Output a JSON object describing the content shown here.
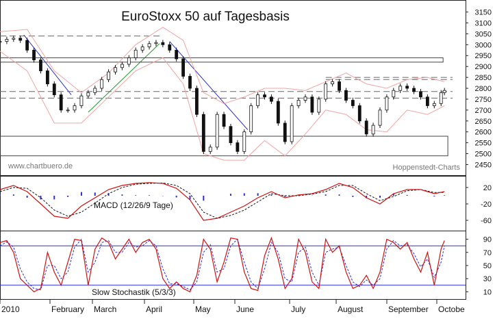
{
  "chart_data": [
    {
      "type": "line",
      "panel": "price",
      "title": "EuroStoxx 50 auf Tagesbasis",
      "watermark_left": "www.chartbuero.de",
      "watermark_right": "Hoppenstedt-Charts",
      "y_ticks": [
        3150,
        3100,
        3050,
        3000,
        2950,
        2900,
        2850,
        2800,
        2750,
        2700,
        2650,
        2600,
        2550,
        2500,
        2450
      ],
      "ylim": [
        2420,
        3180
      ],
      "x_range": [
        0,
        673
      ],
      "series": [
        {
          "x": [
            0,
            10,
            20,
            30,
            40,
            50,
            60,
            70,
            80,
            90,
            100,
            110,
            120,
            130,
            140,
            150,
            160,
            170,
            180,
            190,
            200,
            210,
            220,
            230,
            240,
            250,
            260,
            270,
            280,
            290,
            300,
            310,
            320,
            330,
            340,
            350,
            360,
            370,
            380,
            390,
            400,
            410,
            420,
            430,
            440,
            450,
            460,
            470,
            480,
            490,
            500,
            510,
            520,
            530,
            540,
            550,
            560,
            570,
            580,
            590,
            600,
            610,
            620,
            630,
            640,
            650,
            655
          ],
          "values": [
            3015,
            3025,
            3030,
            3020,
            2975,
            2930,
            2880,
            2820,
            2770,
            2700,
            2700,
            2720,
            2765,
            2780,
            2800,
            2840,
            2875,
            2895,
            2910,
            2940,
            2975,
            2990,
            3005,
            3010,
            3000,
            2975,
            2935,
            2855,
            2800,
            2680,
            2510,
            2530,
            2680,
            2625,
            2550,
            2510,
            2600,
            2720,
            2770,
            2760,
            2740,
            2640,
            2555,
            2720,
            2745,
            2760,
            2690,
            2750,
            2820,
            2830,
            2790,
            2745,
            2720,
            2650,
            2590,
            2630,
            2700,
            2760,
            2790,
            2810,
            2800,
            2785,
            2760,
            2720,
            2730,
            2780,
            2790
          ]
        },
        {
          "name": "upper band",
          "x": [
            0,
            40,
            80,
            120,
            160,
            200,
            240,
            270,
            300,
            330,
            360,
            390,
            420,
            450,
            480,
            510,
            540,
            570,
            600,
            630,
            655
          ],
          "values": [
            3060,
            3070,
            2880,
            2780,
            2870,
            3000,
            3080,
            3020,
            2780,
            2730,
            2760,
            2800,
            2800,
            2790,
            2830,
            2870,
            2820,
            2800,
            2840,
            2850,
            2830
          ]
        },
        {
          "name": "lower band",
          "x": [
            0,
            40,
            80,
            120,
            160,
            200,
            240,
            270,
            300,
            330,
            360,
            390,
            420,
            450,
            480,
            510,
            540,
            570,
            600,
            630,
            655
          ],
          "values": [
            2970,
            2880,
            2640,
            2640,
            2760,
            2880,
            2940,
            2820,
            2500,
            2470,
            2470,
            2560,
            2490,
            2590,
            2700,
            2680,
            2610,
            2600,
            2700,
            2680,
            2720
          ]
        }
      ],
      "annotations": [
        {
          "kind": "trendline",
          "color": "#2a2fd0",
          "from": [
            35,
            3045
          ],
          "to": [
            105,
            2770
          ]
        },
        {
          "kind": "trendline",
          "color": "#1e9a2a",
          "from": [
            130,
            2690
          ],
          "to": [
            235,
            3005
          ]
        },
        {
          "kind": "trendline",
          "color": "#2a2fd0",
          "from": [
            250,
            3015
          ],
          "to": [
            365,
            2610
          ]
        },
        {
          "kind": "rect",
          "from": [
            0,
            2920
          ],
          "to": [
            653,
            2940
          ]
        },
        {
          "kind": "rect",
          "from": [
            0,
            2490
          ],
          "to": [
            660,
            2580
          ]
        },
        {
          "kind": "hline",
          "style": "dashed",
          "y": 2785,
          "from": 0,
          "to": 667
        },
        {
          "kind": "hline",
          "style": "dashed",
          "y": 2755,
          "from": 0,
          "to": 667
        },
        {
          "kind": "hline",
          "style": "dashed",
          "y": 2850,
          "from": 480,
          "to": 667
        },
        {
          "kind": "hline",
          "style": "dashed",
          "y": 2840,
          "from": 480,
          "to": 667
        },
        {
          "kind": "hline",
          "style": "dashed",
          "y": 3040,
          "from": 0,
          "to": 240
        }
      ]
    },
    {
      "type": "line",
      "panel": "macd",
      "title": "MACD (12/26/9 Tage)",
      "y_ticks": [
        20,
        -20,
        -60
      ],
      "ylim": [
        -80,
        40
      ],
      "series": [
        {
          "name": "MACD",
          "x": [
            0,
            20,
            40,
            60,
            80,
            100,
            120,
            140,
            160,
            180,
            200,
            220,
            240,
            260,
            280,
            300,
            320,
            340,
            360,
            380,
            400,
            420,
            440,
            460,
            480,
            500,
            520,
            540,
            560,
            580,
            600,
            620,
            640,
            655
          ],
          "values": [
            15,
            25,
            10,
            -20,
            -50,
            -55,
            -25,
            -5,
            15,
            25,
            30,
            32,
            30,
            18,
            -10,
            -60,
            -55,
            -40,
            -25,
            -5,
            10,
            -5,
            2,
            5,
            15,
            30,
            20,
            -5,
            -20,
            5,
            15,
            15,
            5,
            10
          ]
        },
        {
          "name": "Signal",
          "x": [
            0,
            20,
            40,
            60,
            80,
            100,
            120,
            140,
            160,
            180,
            200,
            220,
            240,
            260,
            280,
            300,
            320,
            340,
            360,
            380,
            400,
            420,
            440,
            460,
            480,
            500,
            520,
            540,
            560,
            580,
            600,
            620,
            640,
            655
          ],
          "values": [
            10,
            20,
            18,
            -5,
            -35,
            -50,
            -40,
            -18,
            5,
            20,
            28,
            30,
            31,
            25,
            5,
            -40,
            -55,
            -48,
            -35,
            -15,
            5,
            0,
            0,
            4,
            10,
            25,
            25,
            5,
            -12,
            -2,
            12,
            15,
            8,
            8
          ]
        }
      ]
    },
    {
      "type": "line",
      "panel": "stochastic",
      "title": "Slow Stochastik (5/3/3)",
      "y_ticks": [
        90,
        70,
        50,
        30,
        10
      ],
      "ylim": [
        0,
        100
      ],
      "reference_lines": [
        80,
        20
      ],
      "x_labels": [
        "2010",
        "February",
        "March",
        "April",
        "May",
        "June",
        "July",
        "August",
        "September",
        "Octobe"
      ],
      "series": [
        {
          "name": "%K",
          "x": [
            0,
            10,
            20,
            30,
            40,
            50,
            60,
            70,
            80,
            90,
            100,
            110,
            120,
            130,
            140,
            150,
            160,
            170,
            180,
            190,
            200,
            210,
            220,
            230,
            240,
            250,
            260,
            270,
            280,
            290,
            300,
            310,
            320,
            330,
            340,
            350,
            360,
            370,
            380,
            390,
            400,
            410,
            420,
            430,
            440,
            450,
            460,
            470,
            480,
            490,
            500,
            510,
            520,
            530,
            540,
            550,
            560,
            570,
            580,
            590,
            600,
            610,
            620,
            630,
            640,
            650,
            655
          ],
          "values": [
            85,
            88,
            70,
            30,
            20,
            10,
            15,
            70,
            40,
            20,
            55,
            90,
            88,
            20,
            75,
            92,
            85,
            60,
            75,
            90,
            70,
            85,
            90,
            75,
            30,
            15,
            25,
            15,
            10,
            35,
            90,
            75,
            25,
            55,
            92,
            90,
            40,
            15,
            12,
            65,
            92,
            60,
            15,
            30,
            90,
            70,
            25,
            15,
            90,
            70,
            80,
            40,
            15,
            20,
            35,
            15,
            40,
            90,
            85,
            75,
            85,
            60,
            40,
            70,
            20,
            75,
            88
          ]
        },
        {
          "name": "%D",
          "x": [
            0,
            10,
            20,
            30,
            40,
            50,
            60,
            70,
            80,
            90,
            100,
            110,
            120,
            130,
            140,
            150,
            160,
            170,
            180,
            190,
            200,
            210,
            220,
            230,
            240,
            250,
            260,
            270,
            280,
            290,
            300,
            310,
            320,
            330,
            340,
            350,
            360,
            370,
            380,
            390,
            400,
            410,
            420,
            430,
            440,
            450,
            460,
            470,
            480,
            490,
            500,
            510,
            520,
            530,
            540,
            550,
            560,
            570,
            580,
            590,
            600,
            610,
            620,
            630,
            640,
            650,
            655
          ],
          "values": [
            80,
            86,
            78,
            45,
            25,
            15,
            13,
            50,
            50,
            30,
            40,
            78,
            90,
            40,
            55,
            85,
            88,
            70,
            70,
            85,
            78,
            80,
            88,
            80,
            45,
            22,
            22,
            18,
            13,
            25,
            70,
            82,
            40,
            45,
            80,
            90,
            55,
            25,
            15,
            45,
            85,
            70,
            30,
            25,
            70,
            78,
            40,
            20,
            70,
            75,
            78,
            50,
            25,
            18,
            28,
            20,
            30,
            75,
            88,
            80,
            82,
            68,
            48,
            60,
            32,
            55,
            80
          ]
        }
      ]
    }
  ]
}
